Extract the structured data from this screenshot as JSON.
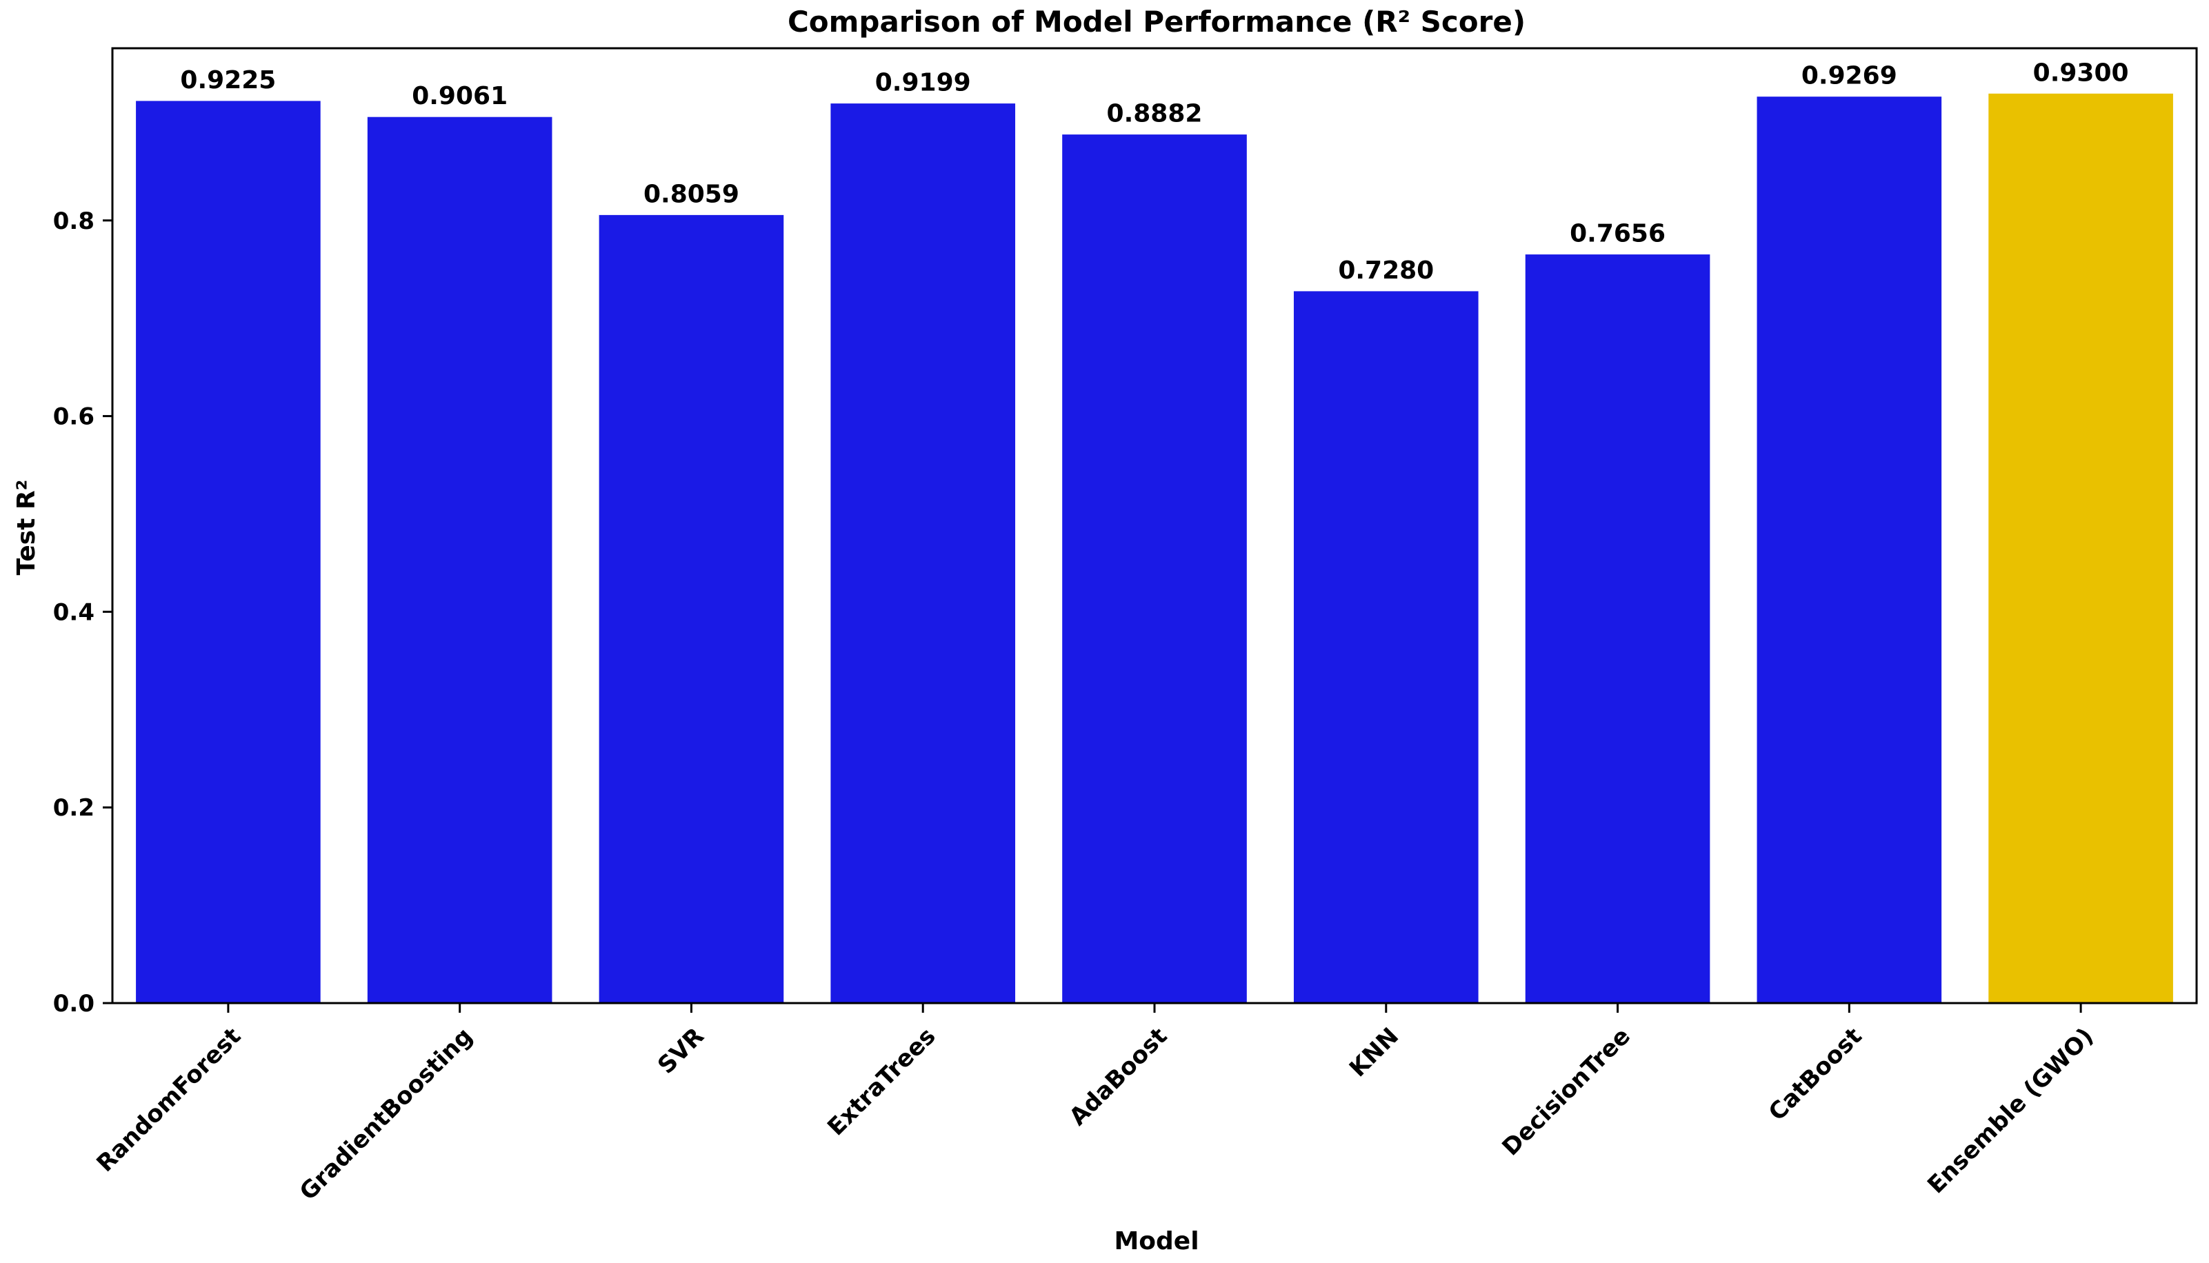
{
  "chart_data": {
    "type": "bar",
    "title": "Comparison of Model Performance (R² Score)",
    "xlabel": "Model",
    "ylabel": "Test R²",
    "categories": [
      "RandomForest",
      "GradientBoosting",
      "SVR",
      "ExtraTrees",
      "AdaBoost",
      "KNN",
      "DecisionTree",
      "CatBoost",
      "Ensemble (GWO)"
    ],
    "values": [
      0.9225,
      0.9061,
      0.8059,
      0.9199,
      0.8882,
      0.728,
      0.7656,
      0.9269,
      0.93
    ],
    "value_labels": [
      "0.9225",
      "0.9061",
      "0.8059",
      "0.9199",
      "0.8882",
      "0.7280",
      "0.7656",
      "0.9269",
      "0.9300"
    ],
    "bar_colors": [
      "#1a1ae6",
      "#1a1ae6",
      "#1a1ae6",
      "#1a1ae6",
      "#1a1ae6",
      "#1a1ae6",
      "#1a1ae6",
      "#1a1ae6",
      "#e9c100"
    ],
    "yticks": [
      0.0,
      0.2,
      0.4,
      0.6,
      0.8
    ],
    "ytick_labels": [
      "0.0",
      "0.2",
      "0.4",
      "0.6",
      "0.8"
    ],
    "ylim": [
      0,
      0.976
    ],
    "grid": false,
    "legend": "none"
  }
}
